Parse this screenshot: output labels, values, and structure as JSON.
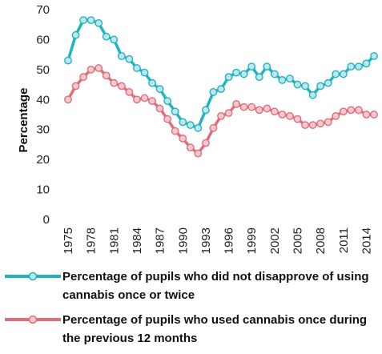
{
  "chart_data": {
    "type": "line",
    "title": "",
    "xlabel": "",
    "ylabel": "Percentage",
    "ylim": [
      0,
      70
    ],
    "yticks": [
      0,
      10,
      20,
      30,
      40,
      50,
      60,
      70
    ],
    "xrange": [
      1975,
      2015
    ],
    "xtick_labels": [
      "1975",
      "1978",
      "1981",
      "1984",
      "1987",
      "1990",
      "1993",
      "1996",
      "1999",
      "2002",
      "2005",
      "2008",
      "2011",
      "2014"
    ],
    "x": [
      1975,
      1976,
      1977,
      1978,
      1979,
      1980,
      1981,
      1982,
      1983,
      1984,
      1985,
      1986,
      1987,
      1988,
      1989,
      1990,
      1991,
      1992,
      1993,
      1994,
      1995,
      1996,
      1997,
      1998,
      1999,
      2000,
      2001,
      2002,
      2003,
      2004,
      2005,
      2006,
      2007,
      2008,
      2009,
      2010,
      2011,
      2012,
      2013,
      2014,
      2015
    ],
    "grid": false,
    "legend_position": "bottom",
    "series": [
      {
        "name": "Percentage of pupils who did not disapprove of using cannabis once or twice",
        "color": "#1cb5c0",
        "marker_fill": "#bfe6ec",
        "values": [
          53,
          61.5,
          66.5,
          66.5,
          65.5,
          61,
          60,
          54.5,
          53.5,
          50.5,
          49,
          45.5,
          43.5,
          39.5,
          36,
          32.5,
          31.5,
          30.5,
          36.5,
          42.5,
          43.5,
          47.5,
          49,
          48.5,
          51,
          47.5,
          51,
          48.5,
          46.5,
          47,
          45,
          44.5,
          41.5,
          44.5,
          45.5,
          48.5,
          48.5,
          51,
          51,
          52,
          54.5
        ]
      },
      {
        "name": "Percentage of pupils who used cannabis once during the previous 12 months",
        "color": "#de6e7a",
        "marker_fill": "#f7c8cd",
        "values": [
          40,
          44.5,
          47.5,
          50,
          50.5,
          48,
          45.5,
          44.5,
          42.5,
          40,
          40.5,
          39.5,
          37,
          33.5,
          29.5,
          27,
          24,
          22,
          25.5,
          30.5,
          34.5,
          35.5,
          38.5,
          37.5,
          37.5,
          36.5,
          37,
          36,
          35,
          34.5,
          33.5,
          31.5,
          31.5,
          32,
          32.5,
          34.5,
          36,
          36.5,
          36.5,
          35,
          35
        ]
      }
    ]
  }
}
